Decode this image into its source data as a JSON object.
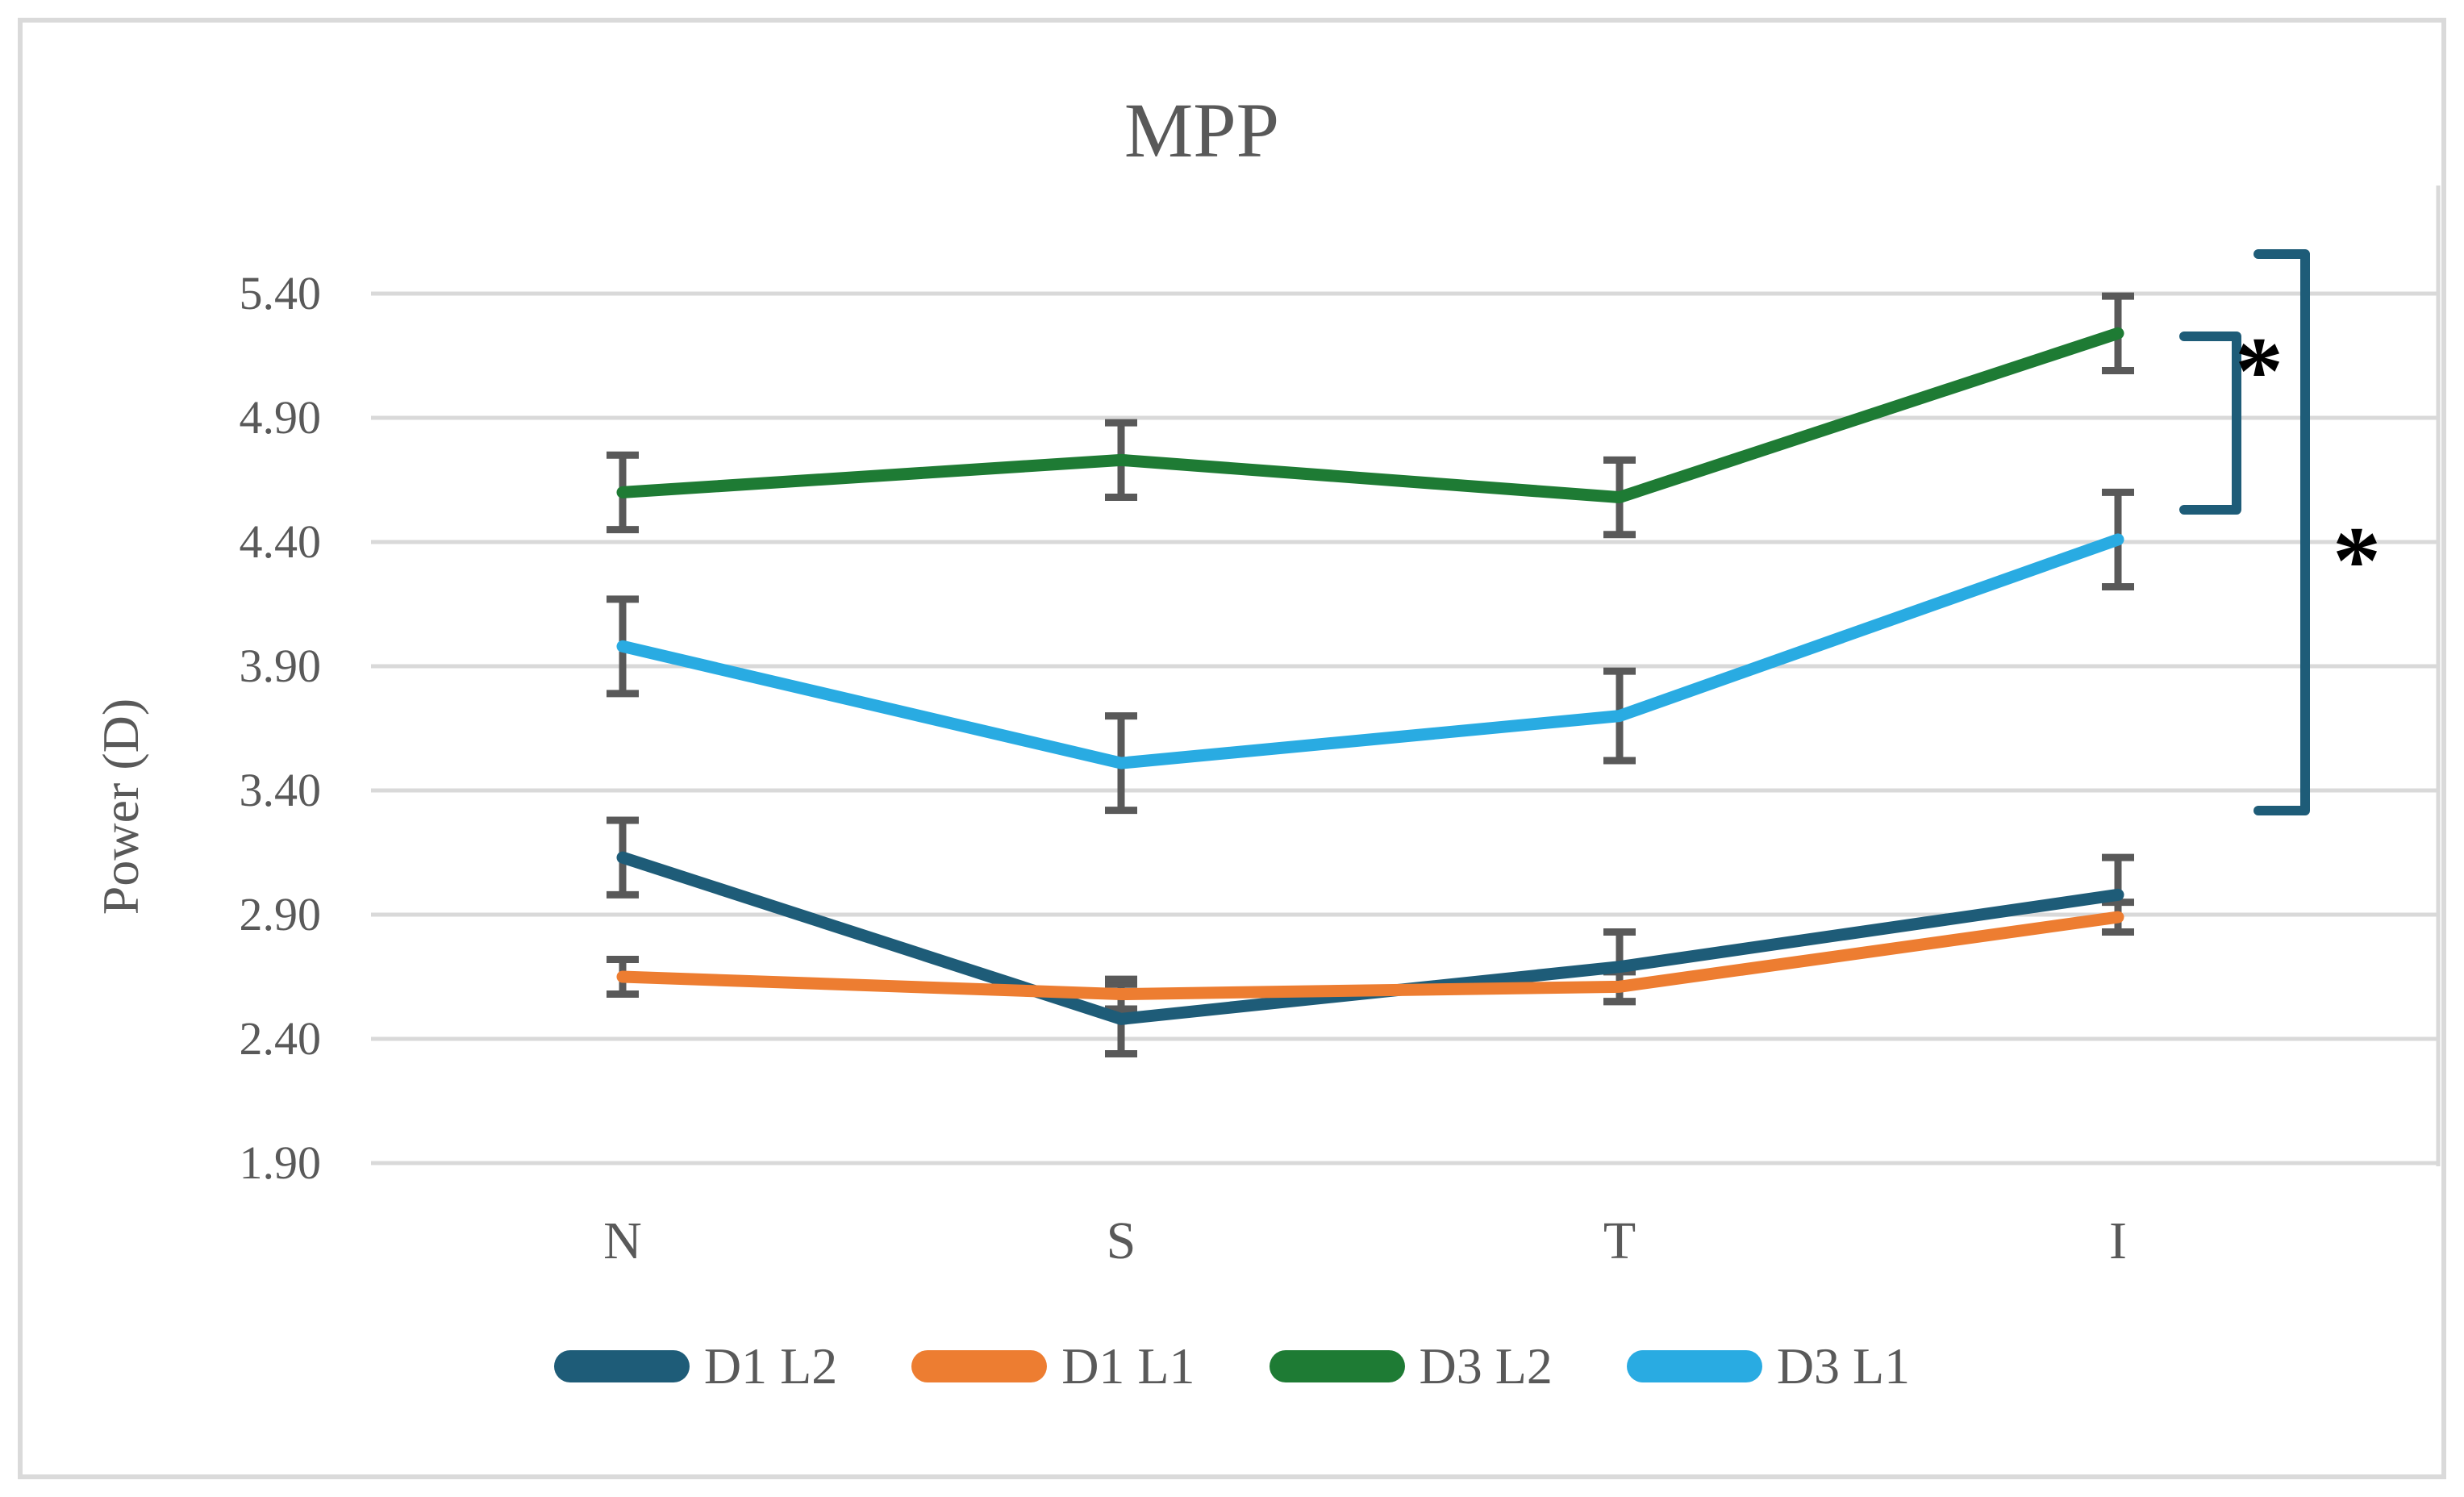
{
  "figure": {
    "title": "MPP"
  },
  "chart_data": {
    "type": "line",
    "title": "MPP",
    "xlabel": "",
    "ylabel": "Power (D)",
    "categories": [
      "N",
      "S",
      "T",
      "I"
    ],
    "ylim": [
      1.9,
      5.4
    ],
    "ytick_step": 0.5,
    "ytick_labels": [
      "5.40",
      "4.90",
      "4.40",
      "3.90",
      "3.40",
      "2.90",
      "2.40",
      "1.90"
    ],
    "grid": true,
    "legend_position": "bottom",
    "error_bars": true,
    "error_bar_color": "#595959",
    "gridline_color": "#D9D9D9",
    "text_color": "#595959",
    "series": [
      {
        "name": "D1 L2",
        "color": "#1E5C78",
        "values": [
          3.13,
          2.48,
          2.69,
          2.98
        ],
        "error": [
          0.15,
          0.14,
          0.14,
          0.15
        ]
      },
      {
        "name": "D1 L1",
        "color": "#ED7D31",
        "values": [
          2.65,
          2.58,
          2.61,
          2.89
        ],
        "error": [
          0.07,
          0.06,
          0.06,
          0.06
        ]
      },
      {
        "name": "D3 L2",
        "color": "#1E7B34",
        "values": [
          4.6,
          4.73,
          4.58,
          5.24
        ],
        "error": [
          0.15,
          0.15,
          0.15,
          0.15
        ]
      },
      {
        "name": "D3 L1",
        "color": "#29ABE2",
        "values": [
          3.98,
          3.51,
          3.7,
          4.41
        ],
        "error": [
          0.19,
          0.19,
          0.18,
          0.19
        ]
      }
    ],
    "annotations": {
      "bracket_color": "#1E5C78",
      "significance_marker": "*",
      "brackets": [
        {
          "compares": "D3 L2 vs D3 L1 at I",
          "x": 2773,
          "arm_x": 2708,
          "y_top": 417,
          "y_bottom": 632
        },
        {
          "compares": "upper group vs lower group",
          "x": 2858,
          "arm_x": 2800,
          "y_top": 315,
          "y_bottom": 1005
        }
      ],
      "asterisks": [
        {
          "x": 2801,
          "y": 443,
          "text": "*"
        },
        {
          "x": 2922,
          "y": 678,
          "text": "*"
        }
      ]
    }
  }
}
